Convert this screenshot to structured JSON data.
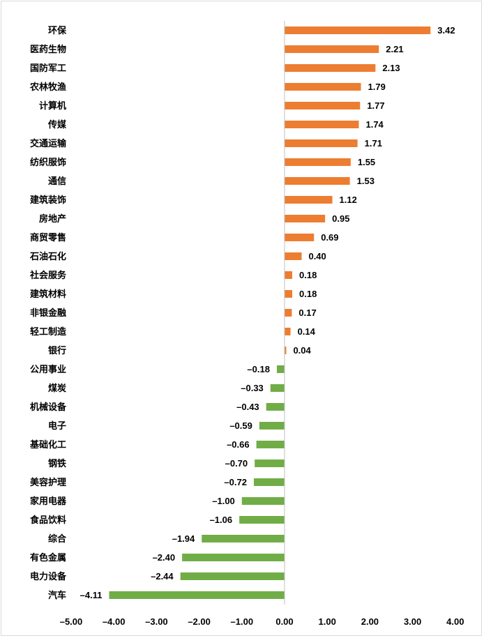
{
  "chart_data": {
    "type": "bar",
    "orientation": "horizontal",
    "categories": [
      "环保",
      "医药生物",
      "国防军工",
      "农林牧渔",
      "计算机",
      "传媒",
      "交通运输",
      "纺织服饰",
      "通信",
      "建筑装饰",
      "房地产",
      "商贸零售",
      "石油石化",
      "社会服务",
      "建筑材料",
      "非银金融",
      "轻工制造",
      "银行",
      "公用事业",
      "煤炭",
      "机械设备",
      "电子",
      "基础化工",
      "钢铁",
      "美容护理",
      "家用电器",
      "食品饮料",
      "综合",
      "有色金属",
      "电力设备",
      "汽车"
    ],
    "values": [
      3.42,
      2.21,
      2.13,
      1.79,
      1.77,
      1.74,
      1.71,
      1.55,
      1.53,
      1.12,
      0.95,
      0.69,
      0.4,
      0.18,
      0.18,
      0.17,
      0.14,
      0.04,
      -0.18,
      -0.33,
      -0.43,
      -0.59,
      -0.66,
      -0.7,
      -0.72,
      -1.0,
      -1.06,
      -1.94,
      -2.4,
      -2.44,
      -4.11
    ],
    "value_labels": [
      "3.42",
      "2.21",
      "2.13",
      "1.79",
      "1.77",
      "1.74",
      "1.71",
      "1.55",
      "1.53",
      "1.12",
      "0.95",
      "0.69",
      "0.40",
      "0.18",
      "0.18",
      "0.17",
      "0.14",
      "0.04",
      "–0.18",
      "–0.33",
      "–0.43",
      "–0.59",
      "–0.66",
      "–0.70",
      "–0.72",
      "–1.00",
      "–1.06",
      "–1.94",
      "–2.40",
      "–2.44",
      "–4.11"
    ],
    "xlim": [
      -5,
      4
    ],
    "xticks": [
      -5,
      -4,
      -3,
      -2,
      -1,
      0,
      1,
      2,
      3,
      4
    ],
    "xtick_labels": [
      "–5.00",
      "–4.00",
      "–3.00",
      "–2.00",
      "–1.00",
      "0.00",
      "1.00",
      "2.00",
      "3.00",
      "4.00"
    ],
    "title": "",
    "xlabel": "",
    "ylabel": "",
    "grid": false,
    "colors": {
      "positive": "#ED7D31",
      "negative": "#70AD47",
      "axis": "#bfbfbf"
    }
  }
}
